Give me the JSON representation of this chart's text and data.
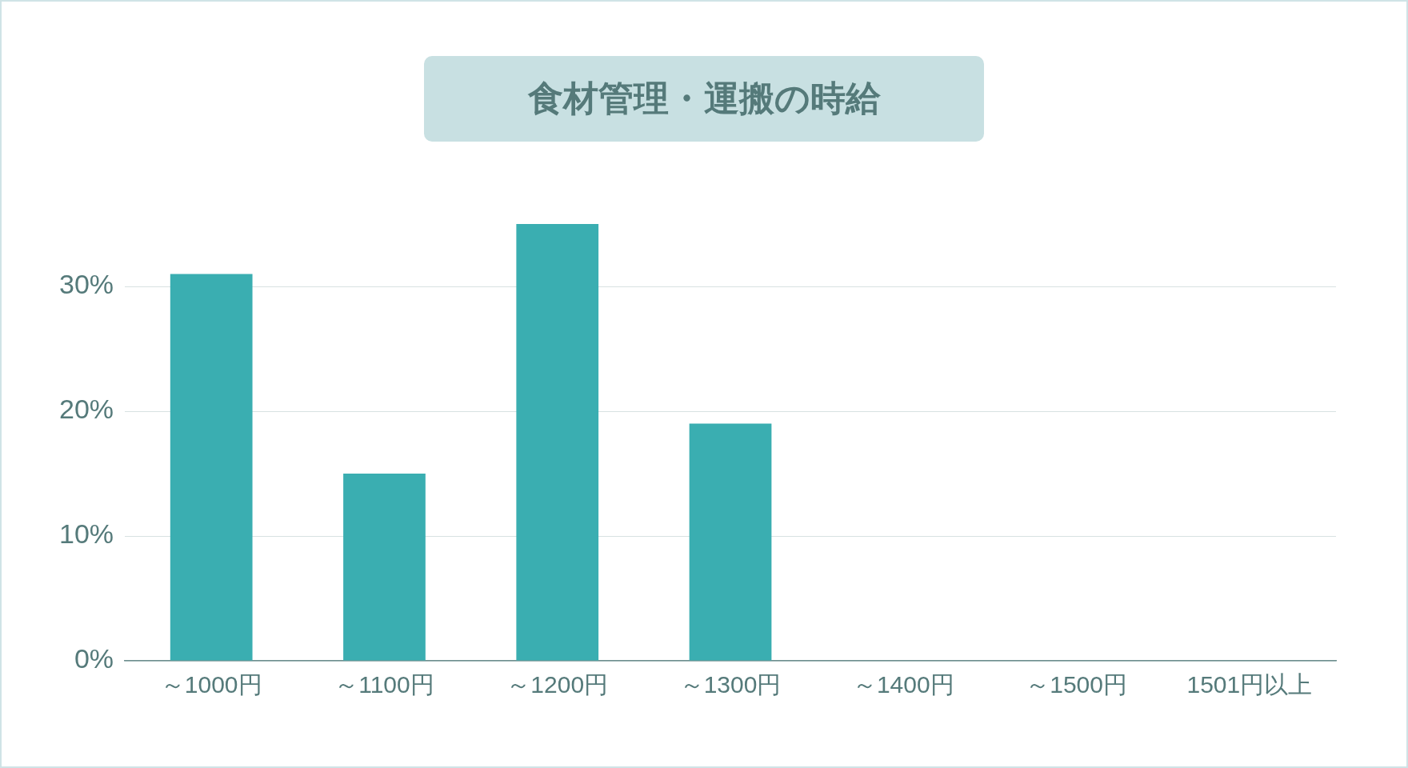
{
  "chart_data": {
    "type": "bar",
    "title": "食材管理・運搬の時給",
    "categories": [
      "～1000円",
      "～1100円",
      "～1200円",
      "～1300円",
      "～1400円",
      "～1500円",
      "1501円以上"
    ],
    "values": [
      31,
      15,
      35,
      19,
      0,
      0,
      0
    ],
    "color": "#3aaeb1",
    "ylim": [
      0,
      35
    ],
    "yticks": [
      {
        "value": 0,
        "label": "0%"
      },
      {
        "value": 10,
        "label": "10%"
      },
      {
        "value": 20,
        "label": "20%"
      },
      {
        "value": 30,
        "label": "30%"
      }
    ],
    "grid": "y",
    "legend": false
  }
}
